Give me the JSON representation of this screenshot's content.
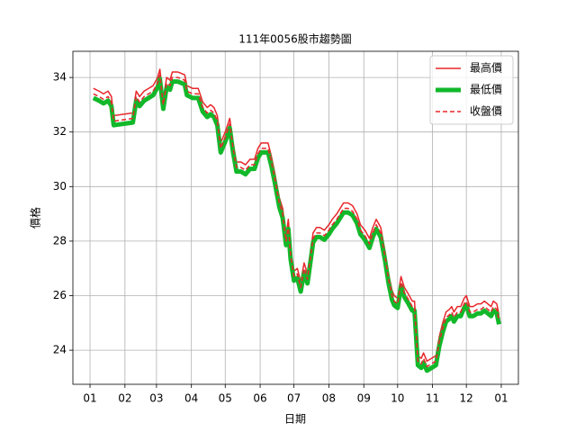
{
  "chart_data": {
    "type": "line",
    "title": "111年0056股市趨勢圖",
    "x_label": "日期",
    "y_label": "價格",
    "x": [
      3,
      8,
      12,
      16,
      19,
      21,
      38,
      41,
      44,
      48,
      52,
      56,
      60,
      62,
      65,
      68,
      71,
      73,
      78,
      84,
      86,
      91,
      96,
      100,
      104,
      107,
      110,
      113,
      116,
      120,
      124,
      127,
      130,
      134,
      138,
      142,
      146,
      149,
      152,
      155,
      158,
      161,
      164,
      168,
      171,
      174,
      176,
      178,
      181,
      184,
      187,
      190,
      193,
      196,
      198,
      201,
      204,
      208,
      212,
      215,
      219,
      222,
      225,
      229,
      233,
      237,
      240,
      244,
      248,
      251,
      254,
      258,
      262,
      265,
      268,
      270,
      273,
      276,
      279,
      282,
      286,
      288,
      291,
      294,
      296,
      299,
      303,
      307,
      310,
      313,
      316,
      319,
      321,
      323,
      326,
      329,
      332,
      334,
      337,
      340,
      344,
      347,
      350,
      353,
      356,
      358,
      361,
      363
    ],
    "series": [
      {
        "name": "最高價",
        "color": "#e8262a",
        "width": 1.5,
        "style": "solid",
        "values": [
          33.6,
          33.5,
          33.4,
          33.5,
          33.3,
          32.6,
          32.7,
          33.5,
          33.3,
          33.5,
          33.6,
          33.7,
          34.0,
          34.3,
          33.2,
          34.0,
          33.9,
          34.2,
          34.2,
          34.1,
          33.7,
          33.6,
          33.6,
          33.1,
          32.9,
          33.0,
          32.9,
          32.6,
          31.6,
          32.0,
          32.5,
          31.6,
          30.9,
          30.9,
          30.8,
          31.0,
          31.0,
          31.4,
          31.6,
          31.6,
          31.6,
          31.1,
          30.5,
          29.6,
          29.2,
          28.2,
          28.8,
          27.7,
          26.9,
          27.0,
          26.5,
          27.2,
          26.8,
          27.7,
          28.3,
          28.5,
          28.5,
          28.4,
          28.6,
          28.8,
          29.0,
          29.2,
          29.4,
          29.4,
          29.3,
          29.0,
          28.6,
          28.4,
          28.1,
          28.5,
          28.8,
          28.5,
          27.6,
          26.8,
          26.2,
          26.0,
          25.9,
          26.7,
          26.3,
          26.1,
          25.8,
          25.8,
          23.8,
          23.7,
          23.9,
          23.6,
          23.7,
          23.8,
          24.5,
          25.0,
          25.4,
          25.5,
          25.6,
          25.4,
          25.6,
          25.6,
          25.9,
          26.0,
          25.6,
          25.6,
          25.7,
          25.7,
          25.8,
          25.7,
          25.6,
          25.8,
          25.7,
          25.3
        ]
      },
      {
        "name": "最低價",
        "color": "#12b82a",
        "width": 5,
        "style": "solid",
        "values": [
          33.25,
          33.15,
          33.05,
          33.15,
          32.95,
          32.25,
          32.35,
          33.15,
          32.95,
          33.15,
          33.25,
          33.35,
          33.65,
          33.95,
          32.85,
          33.65,
          33.55,
          33.85,
          33.85,
          33.75,
          33.35,
          33.25,
          33.25,
          32.75,
          32.55,
          32.65,
          32.55,
          32.25,
          31.25,
          31.65,
          32.15,
          31.25,
          30.55,
          30.55,
          30.45,
          30.65,
          30.65,
          31.05,
          31.25,
          31.25,
          31.25,
          30.75,
          30.15,
          29.25,
          28.85,
          27.85,
          28.45,
          27.35,
          26.55,
          26.65,
          26.15,
          26.85,
          26.45,
          27.35,
          27.95,
          28.15,
          28.15,
          28.05,
          28.25,
          28.45,
          28.65,
          28.85,
          29.05,
          29.05,
          28.95,
          28.65,
          28.25,
          28.05,
          27.75,
          28.15,
          28.45,
          28.15,
          27.25,
          26.45,
          25.85,
          25.65,
          25.55,
          26.35,
          25.95,
          25.75,
          25.45,
          25.45,
          23.45,
          23.35,
          23.55,
          23.25,
          23.35,
          23.45,
          24.15,
          24.65,
          25.05,
          25.15,
          25.25,
          25.05,
          25.25,
          25.25,
          25.55,
          25.65,
          25.25,
          25.25,
          25.35,
          25.35,
          25.45,
          25.35,
          25.25,
          25.45,
          25.35,
          24.95
        ]
      },
      {
        "name": "收盤價",
        "color": "#e8262a",
        "width": 1.5,
        "style": "dashed",
        "values": [
          33.4,
          33.3,
          33.2,
          33.3,
          33.1,
          32.4,
          32.5,
          33.3,
          33.1,
          33.3,
          33.4,
          33.5,
          33.8,
          34.1,
          33.0,
          33.8,
          33.7,
          34.0,
          34.0,
          33.9,
          33.5,
          33.4,
          33.4,
          32.9,
          32.7,
          32.8,
          32.7,
          32.4,
          31.4,
          31.8,
          32.3,
          31.4,
          30.7,
          30.7,
          30.6,
          30.8,
          30.8,
          31.2,
          31.4,
          31.4,
          31.4,
          30.9,
          30.3,
          29.4,
          29.0,
          28.0,
          28.6,
          27.5,
          26.7,
          26.8,
          26.3,
          27.0,
          26.6,
          27.5,
          28.1,
          28.3,
          28.3,
          28.2,
          28.4,
          28.6,
          28.8,
          29.0,
          29.2,
          29.2,
          29.1,
          28.8,
          28.4,
          28.2,
          27.9,
          28.3,
          28.6,
          28.3,
          27.4,
          26.6,
          26.0,
          25.8,
          25.7,
          26.5,
          26.1,
          25.9,
          25.6,
          25.6,
          23.6,
          23.5,
          23.7,
          23.4,
          23.5,
          23.6,
          24.3,
          24.8,
          25.2,
          25.3,
          25.4,
          25.2,
          25.4,
          25.4,
          25.7,
          25.8,
          25.4,
          25.4,
          25.5,
          25.5,
          25.6,
          25.5,
          25.4,
          25.6,
          25.5,
          25.1
        ]
      }
    ],
    "xlim": [
      -15.2,
      380.2
    ],
    "xticks": [
      {
        "value": 0,
        "label": "01"
      },
      {
        "value": 31,
        "label": "02"
      },
      {
        "value": 59,
        "label": "03"
      },
      {
        "value": 90,
        "label": "04"
      },
      {
        "value": 120,
        "label": "05"
      },
      {
        "value": 151,
        "label": "06"
      },
      {
        "value": 181,
        "label": "07"
      },
      {
        "value": 212,
        "label": "08"
      },
      {
        "value": 243,
        "label": "09"
      },
      {
        "value": 273,
        "label": "10"
      },
      {
        "value": 304,
        "label": "11"
      },
      {
        "value": 334,
        "label": "12"
      },
      {
        "value": 365,
        "label": "01"
      }
    ],
    "ylim": [
      22.75,
      34.96
    ],
    "yticks": [
      24,
      26,
      28,
      30,
      32,
      34
    ],
    "grid": true,
    "legend": "upper right"
  }
}
